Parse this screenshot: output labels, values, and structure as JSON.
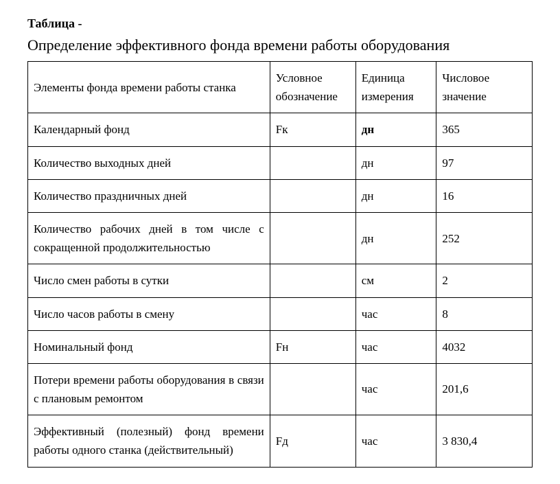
{
  "label": "Таблица -",
  "title": "Определение эффективного фонда времени работы оборудования",
  "table": {
    "headers": {
      "elements": "Элементы фонда времени работы станка",
      "symbol": "Условное обозначение",
      "unit": "Единица измерения",
      "value": "Числовое значение"
    },
    "rows": [
      {
        "elements": "Календарный фонд",
        "symbol": "Fк",
        "unit": "дн",
        "unit_bold": true,
        "value": "365",
        "justify": false
      },
      {
        "elements": "Количество выходных дней",
        "symbol": "",
        "unit": "дн",
        "unit_bold": false,
        "value": "97",
        "justify": false
      },
      {
        "elements": "Количество праздничных дней",
        "symbol": "",
        "unit": "дн",
        "unit_bold": false,
        "value": "16",
        "justify": false
      },
      {
        "elements": "Количество рабочих дней в том числе с сокращенной продолжительностью",
        "symbol": "",
        "unit": "дн",
        "unit_bold": false,
        "value": "252",
        "justify": true
      },
      {
        "elements": "Число смен работы в сутки",
        "symbol": "",
        "unit": "см",
        "unit_bold": false,
        "value": "2",
        "justify": false
      },
      {
        "elements": "Число часов работы в смену",
        "symbol": "",
        "unit": "час",
        "unit_bold": false,
        "value": "8",
        "justify": false
      },
      {
        "elements": "Номинальный фонд",
        "symbol": "Fн",
        "unit": "час",
        "unit_bold": false,
        "value": "4032",
        "justify": false
      },
      {
        "elements": "Потери времени работы оборудования в связи с плановым ремонтом",
        "symbol": "",
        "unit": "час",
        "unit_bold": false,
        "value": "201,6",
        "justify": true
      },
      {
        "elements": "Эффективный (полезный) фонд времени работы одного станка (действительный)",
        "symbol": "Fд",
        "unit": "час",
        "unit_bold": false,
        "value": "3 830,4",
        "justify": true
      }
    ]
  }
}
